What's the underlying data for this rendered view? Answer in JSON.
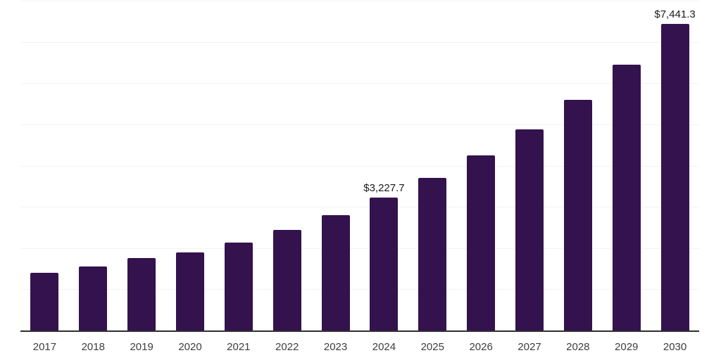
{
  "chart_data": {
    "type": "bar",
    "title": "",
    "xlabel": "",
    "ylabel": "",
    "categories": [
      "2017",
      "2018",
      "2019",
      "2020",
      "2021",
      "2022",
      "2023",
      "2024",
      "2025",
      "2026",
      "2027",
      "2028",
      "2029",
      "2030"
    ],
    "values": [
      1400,
      1555,
      1755,
      1895,
      2130,
      2440,
      2795,
      3227.7,
      3710,
      4250,
      4880,
      5600,
      6450,
      7441.3
    ],
    "data_labels": {
      "2024": "$3,227.7",
      "2030": "$7,441.3"
    },
    "ylim": [
      0,
      8000
    ],
    "gridline_step": 1000,
    "grid_on": true,
    "legend": "none",
    "colors": {
      "bar": "#33124d",
      "gridline": "#f3f3f3",
      "axis_line": "#2f2f2f",
      "tick_label": "#3d3d3d",
      "value_label": "#1a1a1a",
      "background": "#ffffff"
    }
  }
}
